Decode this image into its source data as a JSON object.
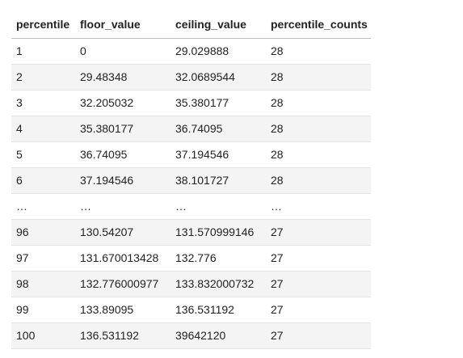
{
  "table": {
    "columns": [
      "percentile",
      "floor_value",
      "ceiling_value",
      "percentile_counts"
    ],
    "rows": [
      [
        "1",
        "0",
        "29.029888",
        "28"
      ],
      [
        "2",
        "29.48348",
        "32.0689544",
        "28"
      ],
      [
        "3",
        "32.205032",
        "35.380177",
        "28"
      ],
      [
        "4",
        "35.380177",
        "36.74095",
        "28"
      ],
      [
        "5",
        "36.74095",
        "37.194546",
        "28"
      ],
      [
        "6",
        "37.194546",
        "38.101727",
        "28"
      ],
      [
        "…",
        "…",
        "…",
        "…"
      ],
      [
        "96",
        "130.54207",
        "131.570999146",
        "27"
      ],
      [
        "97",
        "131.670013428",
        "132.776",
        "27"
      ],
      [
        "98",
        "132.776000977",
        "133.832000732",
        "27"
      ],
      [
        "99",
        "133.89095",
        "136.531192",
        "27"
      ],
      [
        "100",
        "136.531192",
        "39642120",
        "27"
      ]
    ]
  }
}
